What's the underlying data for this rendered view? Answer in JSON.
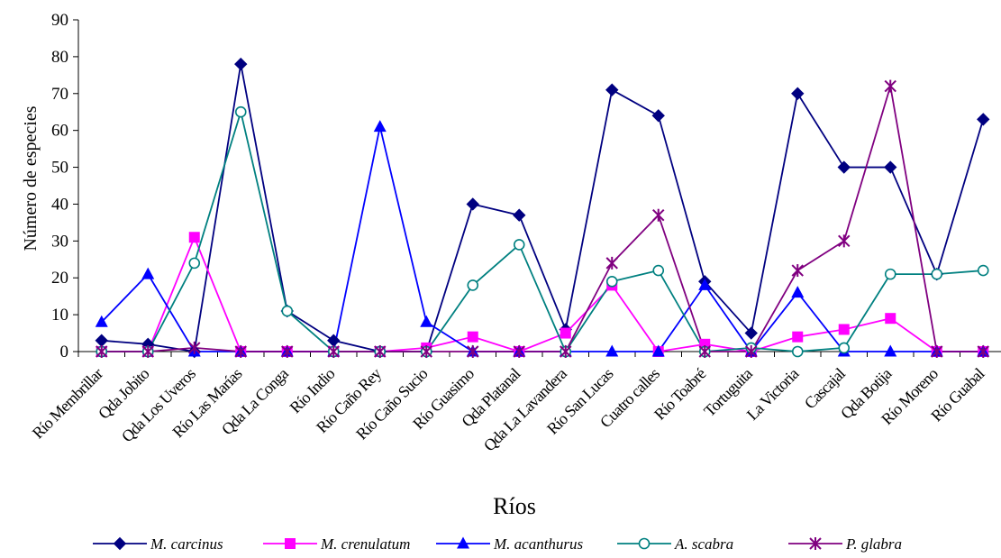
{
  "chart_data": {
    "type": "line",
    "title": "",
    "xlabel": "Ríos",
    "ylabel": "Número de especies",
    "ylim": [
      0,
      90
    ],
    "yticks": [
      0,
      10,
      20,
      30,
      40,
      50,
      60,
      70,
      80,
      90
    ],
    "grid": false,
    "legend_position": "bottom",
    "categories": [
      "Río Membrillar",
      "Qda Jobito",
      "Qda Los Uveros",
      "Río Las Marías",
      "Qda La Conga",
      "Río Indio",
      "Río Caño Rey",
      "Río Caño Sucio",
      "Río Guasimo",
      "Qda Platanal",
      "Qda La Lavandera",
      "Río San Lucas",
      "Cuatro calles",
      "Río Toabré",
      "Tortuguita",
      "La Victoria",
      "Cascajal",
      "Qda Botija",
      "Río Moreno",
      "Río Guabal"
    ],
    "series": [
      {
        "name": "M. carcinus",
        "color": "#000080",
        "marker": "diamond",
        "values": [
          3,
          2,
          0,
          78,
          11,
          3,
          0,
          0,
          40,
          37,
          6,
          71,
          64,
          19,
          5,
          70,
          50,
          50,
          21,
          63
        ]
      },
      {
        "name": "M. crenulatum",
        "color": "#FF00FF",
        "marker": "square",
        "values": [
          0,
          0,
          31,
          0,
          0,
          0,
          0,
          1,
          4,
          0,
          5,
          18,
          0,
          2,
          0,
          4,
          6,
          9,
          0,
          0
        ]
      },
      {
        "name": "M. acanthurus",
        "color": "#0000FF",
        "marker": "triangle",
        "values": [
          8,
          21,
          0,
          0,
          0,
          0,
          61,
          8,
          0,
          0,
          0,
          0,
          0,
          18,
          0,
          16,
          0,
          0,
          0,
          0
        ]
      },
      {
        "name": "A. scabra",
        "color": "#008080",
        "marker": "circle",
        "values": [
          0,
          0,
          24,
          65,
          11,
          0,
          0,
          0,
          18,
          29,
          0,
          19,
          22,
          0,
          1,
          0,
          1,
          21,
          21,
          22
        ]
      },
      {
        "name": "P. glabra",
        "color": "#800080",
        "marker": "star",
        "values": [
          0,
          0,
          1,
          0,
          0,
          0,
          0,
          0,
          0,
          0,
          0,
          24,
          37,
          0,
          0,
          22,
          30,
          72,
          0,
          0
        ]
      }
    ]
  }
}
